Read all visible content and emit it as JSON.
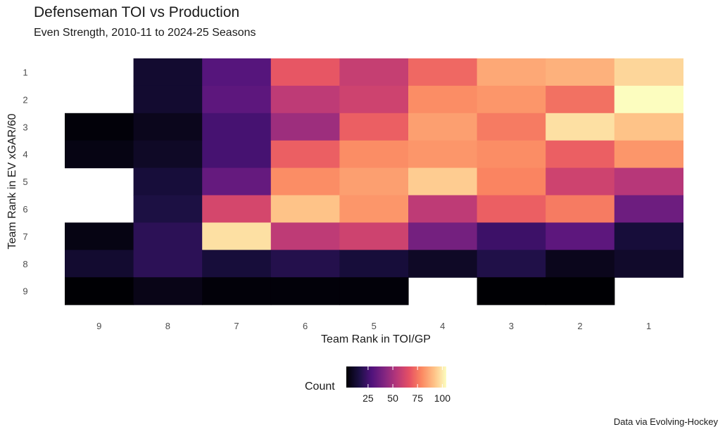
{
  "chart_data": {
    "type": "heatmap",
    "title": "Defenseman TOI vs Production",
    "subtitle": "Even Strength, 2010-11 to 2024-25 Seasons",
    "xlabel": "Team Rank in TOI/GP",
    "ylabel": "Team Rank in EV xGAR/60",
    "x_categories": [
      "9",
      "8",
      "7",
      "6",
      "5",
      "4",
      "3",
      "2",
      "1"
    ],
    "y_categories": [
      "1",
      "2",
      "3",
      "4",
      "5",
      "6",
      "7",
      "8",
      "9"
    ],
    "values": [
      [
        null,
        12,
        30,
        68,
        58,
        72,
        86,
        88,
        96
      ],
      [
        null,
        12,
        32,
        56,
        60,
        80,
        82,
        74,
        104
      ],
      [
        4,
        8,
        26,
        48,
        70,
        84,
        76,
        98,
        92
      ],
      [
        6,
        10,
        26,
        70,
        80,
        82,
        80,
        70,
        82
      ],
      [
        null,
        14,
        34,
        80,
        84,
        94,
        78,
        60,
        54
      ],
      [
        null,
        16,
        62,
        92,
        82,
        56,
        70,
        76,
        36
      ],
      [
        6,
        20,
        98,
        56,
        60,
        38,
        24,
        32,
        14
      ],
      [
        12,
        20,
        14,
        18,
        14,
        10,
        17,
        8,
        11
      ],
      [
        3,
        7,
        4,
        4,
        4,
        null,
        3,
        3,
        null
      ]
    ],
    "color_scale": "magma",
    "legend": {
      "title": "Count",
      "ticks": [
        25,
        50,
        75,
        100
      ],
      "range": [
        3,
        104
      ],
      "position": "bottom"
    },
    "caption": "Data via Evolving-Hockey"
  }
}
